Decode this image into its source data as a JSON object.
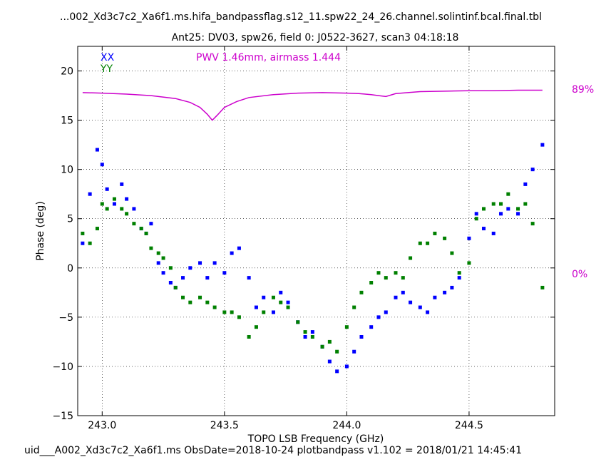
{
  "chart_data": {
    "type": "scatter",
    "title": "...002_Xd3c7c2_Xa6f1.ms.hifa_bandpassflag.s12_11.spw22_24_26.channel.solintinf.bcal.final.tbl",
    "subtitle": "Ant25: DV03,  spw26,  field 0: J0522-3627,  scan3  04:18:18",
    "xlabel": "TOPO LSB Frequency (GHz)",
    "ylabel": "Phase (deg)",
    "xlim": [
      242.9,
      244.85
    ],
    "ylim": [
      -15,
      22.5
    ],
    "xticks": [
      "243.0",
      "243.5",
      "244.0",
      "244.5"
    ],
    "yticks": [
      "20",
      "15",
      "10",
      "5",
      "0",
      "−5",
      "−10",
      "−15"
    ],
    "grid": true,
    "legend": [
      "XX",
      "YY"
    ],
    "annotation": "PWV 1.46mm, airmass 1.444",
    "right_axis_labels": [
      "89%",
      "0%"
    ],
    "footer": "uid___A002_Xd3c7c2_Xa6f1.ms  ObsDate=2018-10-24   plotbandpass v1.102 = 2018/01/21 14:45:41",
    "colors": {
      "xx": "#0000ff",
      "yy": "#008000",
      "atm": "#cc00cc"
    },
    "series": [
      {
        "name": "XX",
        "x": [
          242.92,
          242.95,
          242.98,
          243.0,
          243.02,
          243.05,
          243.08,
          243.1,
          243.13,
          243.16,
          243.18,
          243.2,
          243.23,
          243.25,
          243.28,
          243.3,
          243.33,
          243.36,
          243.4,
          243.43,
          243.46,
          243.5,
          243.53,
          243.56,
          243.6,
          243.63,
          243.66,
          243.7,
          243.73,
          243.76,
          243.8,
          243.83,
          243.86,
          243.9,
          243.93,
          243.96,
          244.0,
          244.03,
          244.06,
          244.1,
          244.13,
          244.16,
          244.2,
          244.23,
          244.26,
          244.3,
          244.33,
          244.36,
          244.4,
          244.43,
          244.46,
          244.5,
          244.53,
          244.56,
          244.6,
          244.63,
          244.66,
          244.7,
          244.73,
          244.76,
          244.8
        ],
        "y": [
          2.5,
          7.5,
          12.0,
          10.5,
          8.0,
          6.5,
          8.5,
          7.0,
          6.0,
          4.0,
          3.5,
          4.5,
          0.5,
          -0.5,
          -1.5,
          -2.0,
          -1.0,
          0.0,
          0.5,
          -1.0,
          0.5,
          -0.5,
          1.5,
          2.0,
          -1.0,
          -4.0,
          -3.0,
          -4.5,
          -2.5,
          -3.5,
          -5.5,
          -7.0,
          -6.5,
          -8.0,
          -9.5,
          -10.5,
          -10.0,
          -8.5,
          -7.0,
          -6.0,
          -5.0,
          -4.5,
          -3.0,
          -2.5,
          -3.5,
          -4.0,
          -4.5,
          -3.0,
          -2.5,
          -2.0,
          -1.0,
          3.0,
          5.5,
          4.0,
          3.5,
          5.5,
          6.0,
          5.5,
          8.5,
          10.0,
          12.5
        ]
      },
      {
        "name": "YY",
        "x": [
          242.92,
          242.95,
          242.98,
          243.0,
          243.02,
          243.05,
          243.08,
          243.1,
          243.13,
          243.16,
          243.18,
          243.2,
          243.23,
          243.25,
          243.28,
          243.3,
          243.33,
          243.36,
          243.4,
          243.43,
          243.46,
          243.5,
          243.53,
          243.56,
          243.6,
          243.63,
          243.66,
          243.7,
          243.73,
          243.76,
          243.8,
          243.83,
          243.86,
          243.9,
          243.93,
          243.96,
          244.0,
          244.03,
          244.06,
          244.1,
          244.13,
          244.16,
          244.2,
          244.23,
          244.26,
          244.3,
          244.33,
          244.36,
          244.4,
          244.43,
          244.46,
          244.5,
          244.53,
          244.56,
          244.6,
          244.63,
          244.66,
          244.7,
          244.73,
          244.76,
          244.8
        ],
        "y": [
          3.5,
          2.5,
          4.0,
          6.5,
          6.0,
          7.0,
          6.0,
          5.5,
          4.5,
          4.0,
          3.5,
          2.0,
          1.5,
          1.0,
          0.0,
          -2.0,
          -3.0,
          -3.5,
          -3.0,
          -3.5,
          -4.0,
          -4.5,
          -4.5,
          -5.0,
          -7.0,
          -6.0,
          -4.5,
          -3.0,
          -3.5,
          -4.0,
          -5.5,
          -6.5,
          -7.0,
          -8.0,
          -7.5,
          -8.5,
          -6.0,
          -4.0,
          -2.5,
          -1.5,
          -0.5,
          -1.0,
          -0.5,
          -1.0,
          1.0,
          2.5,
          2.5,
          3.5,
          3.0,
          1.5,
          -0.5,
          0.5,
          5.0,
          6.0,
          6.5,
          6.5,
          7.5,
          6.0,
          6.5,
          4.5,
          -2.0
        ]
      },
      {
        "name": "",
        "x": [
          242.92,
          243.0,
          243.1,
          243.2,
          243.3,
          243.36,
          243.4,
          243.43,
          243.45,
          243.47,
          243.5,
          243.55,
          243.6,
          243.7,
          243.8,
          243.9,
          244.0,
          244.05,
          244.1,
          244.13,
          244.16,
          244.2,
          244.3,
          244.4,
          244.5,
          244.6,
          244.7,
          244.8
        ],
        "y": [
          17.8,
          17.75,
          17.65,
          17.5,
          17.2,
          16.8,
          16.3,
          15.6,
          15.0,
          15.5,
          16.3,
          16.9,
          17.3,
          17.6,
          17.75,
          17.8,
          17.75,
          17.7,
          17.6,
          17.5,
          17.4,
          17.7,
          17.9,
          17.95,
          18.0,
          18.0,
          18.05,
          18.05
        ]
      }
    ]
  }
}
